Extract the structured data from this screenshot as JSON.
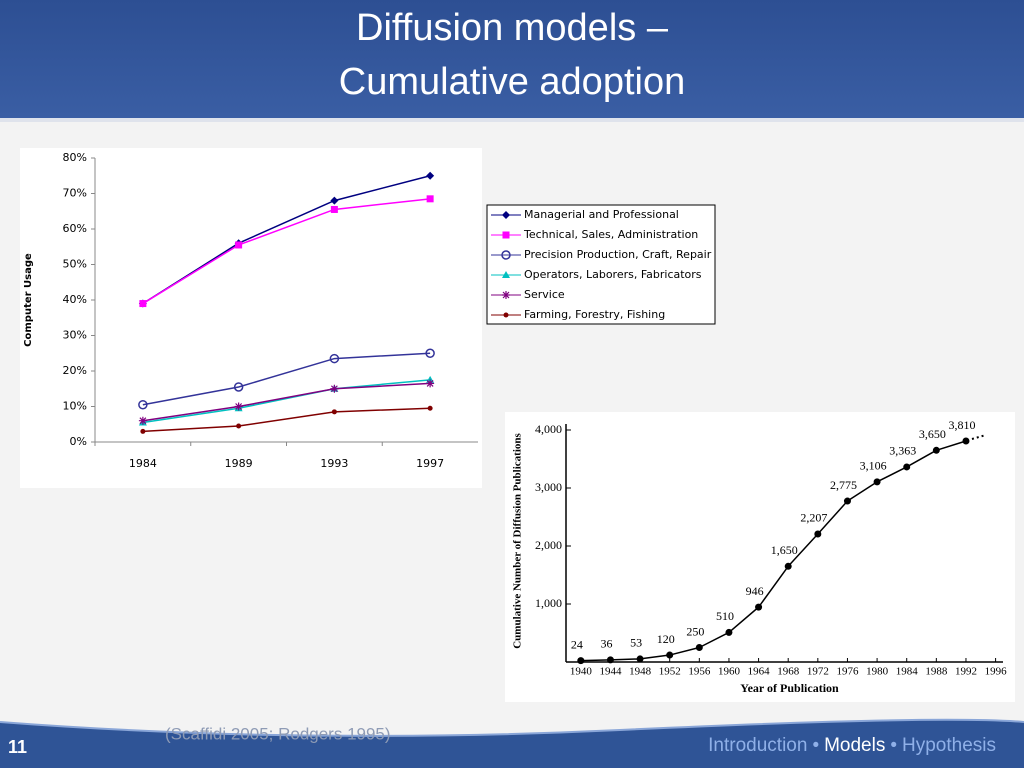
{
  "slide": {
    "title_lines": [
      "Diffusion models –",
      "Cumulative adoption"
    ],
    "citation": "(Scaffidi 2005; Rodgers 1995)",
    "page_number": "11",
    "nav": {
      "items": [
        "Introduction",
        "Models",
        "Hypothesis"
      ],
      "separator": "•",
      "current": 1
    }
  },
  "chart_data": [
    {
      "type": "line",
      "ylabel": "Computer Usage",
      "categories": [
        "1984",
        "1989",
        "1993",
        "1997"
      ],
      "ylim": [
        0,
        80
      ],
      "yticks": [
        {
          "value": 0,
          "label": "0%"
        },
        {
          "value": 10,
          "label": "10%"
        },
        {
          "value": 20,
          "label": "20%"
        },
        {
          "value": 30,
          "label": "30%"
        },
        {
          "value": 40,
          "label": "40%"
        },
        {
          "value": 50,
          "label": "50%"
        },
        {
          "value": 60,
          "label": "60%"
        },
        {
          "value": 70,
          "label": "70%"
        },
        {
          "value": 80,
          "label": "80%"
        }
      ],
      "legend": "right",
      "series": [
        {
          "name": "Managerial and Professional",
          "color": "#000080",
          "marker": "diamond",
          "values": [
            39,
            56,
            68,
            75
          ]
        },
        {
          "name": "Technical, Sales, Administration",
          "color": "#ff00ff",
          "marker": "square",
          "values": [
            39,
            55.5,
            65.5,
            68.5
          ]
        },
        {
          "name": "Precision Production, Craft, Repair",
          "color": "#333399",
          "marker": "circle",
          "values": [
            10.5,
            15.5,
            23.5,
            25
          ]
        },
        {
          "name": "Operators, Laborers, Fabricators",
          "color": "#00c0c0",
          "marker": "triangle",
          "values": [
            5.5,
            9.5,
            15,
            17.5
          ]
        },
        {
          "name": "Service",
          "color": "#800080",
          "marker": "star",
          "values": [
            6,
            10,
            15,
            16.5
          ]
        },
        {
          "name": "Farming, Forestry, Fishing",
          "color": "#800000",
          "marker": "dot",
          "values": [
            3,
            4.5,
            8.5,
            9.5
          ]
        }
      ]
    },
    {
      "type": "scatterline",
      "xlabel": "Year of Publication",
      "ylabel": "Cumulative Number of Diffusion Publications",
      "x": [
        1940,
        1944,
        1948,
        1952,
        1956,
        1960,
        1964,
        1968,
        1972,
        1976,
        1980,
        1984,
        1988,
        1992
      ],
      "values": [
        24,
        36,
        53,
        120,
        250,
        510,
        946,
        1650,
        2207,
        2775,
        3106,
        3363,
        3650,
        3810
      ],
      "value_labels": [
        "24",
        "36",
        "53",
        "120",
        "250",
        "510",
        "946",
        "1,650",
        "2,207",
        "2,775",
        "3,106",
        "3,363",
        "3,650",
        "3,810"
      ],
      "color": "#000000",
      "xlim": [
        1938,
        1997
      ],
      "xticks": [
        1940,
        1944,
        1948,
        1952,
        1956,
        1960,
        1964,
        1968,
        1972,
        1976,
        1980,
        1984,
        1988,
        1992,
        1996
      ],
      "ylim": [
        0,
        4000
      ],
      "yticks": [
        {
          "value": 1000,
          "label": "1,000"
        },
        {
          "value": 2000,
          "label": "2,000"
        },
        {
          "value": 3000,
          "label": "3,000"
        },
        {
          "value": 4000,
          "label": "4,000"
        }
      ]
    }
  ]
}
